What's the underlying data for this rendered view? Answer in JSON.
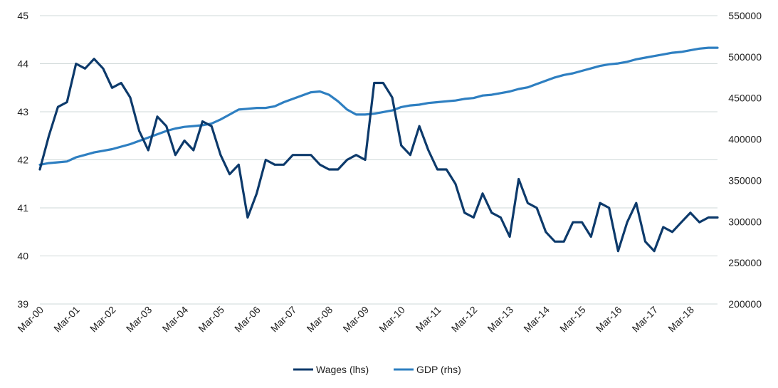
{
  "colors": {
    "wages": "#0d3a6b",
    "gdp": "#2e7fc1",
    "grid": "#cfd8d8"
  },
  "legend": {
    "wages": "Wages (lhs)",
    "gdp": "GDP (rhs)"
  },
  "chart_data": {
    "type": "line",
    "title": "",
    "xlabel": "",
    "ylabel": "",
    "x_tick_labels": [
      "Mar-00",
      "Mar-01",
      "Mar-02",
      "Mar-03",
      "Mar-04",
      "Mar-05",
      "Mar-06",
      "Mar-07",
      "Mar-08",
      "Mar-09",
      "Mar-10",
      "Mar-11",
      "Mar-12",
      "Mar-13",
      "Mar-14",
      "Mar-15",
      "Mar-16",
      "Mar-17",
      "Mar-18"
    ],
    "y_left_ticks": [
      "39",
      "40",
      "41",
      "42",
      "43",
      "44",
      "45"
    ],
    "y_right_ticks": [
      "200000",
      "250000",
      "300000",
      "350000",
      "400000",
      "450000",
      "500000",
      "550000"
    ],
    "ylim_left": [
      39,
      45
    ],
    "ylim_right": [
      200000,
      550000
    ],
    "quarters_start": "Mar-00",
    "grid": true,
    "legend_position": "bottom",
    "series": [
      {
        "name": "Wages (lhs)",
        "axis": "left",
        "values": [
          41.8,
          42.5,
          43.1,
          43.2,
          44.0,
          43.9,
          44.1,
          43.9,
          43.5,
          43.6,
          43.3,
          42.6,
          42.2,
          42.9,
          42.7,
          42.1,
          42.4,
          42.2,
          42.8,
          42.7,
          42.1,
          41.7,
          41.9,
          40.8,
          41.3,
          42.0,
          41.9,
          41.9,
          42.1,
          42.1,
          42.1,
          41.9,
          41.8,
          41.8,
          42.0,
          42.1,
          42.0,
          43.6,
          43.6,
          43.3,
          42.3,
          42.1,
          42.7,
          42.2,
          41.8,
          41.8,
          41.5,
          40.9,
          40.8,
          41.3,
          40.9,
          40.8,
          40.4,
          41.6,
          41.1,
          41.0,
          40.5,
          40.3,
          40.3,
          40.7,
          40.7,
          40.4,
          41.1,
          41.0,
          40.1,
          40.7,
          41.1,
          40.3,
          40.1,
          40.6,
          40.5,
          40.7,
          40.9,
          40.7,
          40.8,
          40.8
        ]
      },
      {
        "name": "GDP (rhs)",
        "axis": "right",
        "values": [
          369000,
          371000,
          372000,
          373000,
          378000,
          381000,
          384000,
          386000,
          388000,
          391000,
          394000,
          398000,
          402000,
          406000,
          410000,
          413000,
          415000,
          416000,
          417000,
          419000,
          424000,
          430000,
          436000,
          437000,
          438000,
          438000,
          440000,
          445000,
          449000,
          453000,
          457000,
          458000,
          454000,
          446000,
          436000,
          430000,
          430000,
          431000,
          433000,
          435000,
          439000,
          441000,
          442000,
          444000,
          445000,
          446000,
          447000,
          449000,
          450000,
          453000,
          454000,
          456000,
          458000,
          461000,
          463000,
          467000,
          471000,
          475000,
          478000,
          480000,
          483000,
          486000,
          489000,
          491000,
          492000,
          494000,
          497000,
          499000,
          501000,
          503000,
          505000,
          506000,
          508000,
          510000,
          511000,
          511000
        ]
      }
    ]
  }
}
